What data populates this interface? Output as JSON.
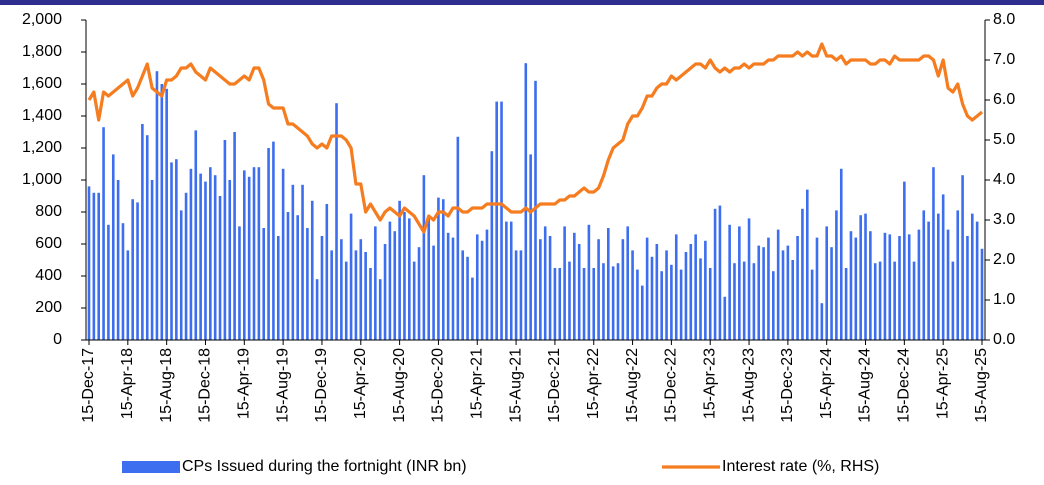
{
  "chart_data": {
    "type": "bar",
    "categories": [
      "15-Dec-17",
      null,
      null,
      null,
      null,
      null,
      null,
      null,
      "15-Apr-18",
      null,
      null,
      null,
      null,
      null,
      null,
      null,
      "15-Aug-18",
      null,
      null,
      null,
      null,
      null,
      null,
      null,
      "15-Dec-18",
      null,
      null,
      null,
      null,
      null,
      null,
      null,
      "15-Apr-19",
      null,
      null,
      null,
      null,
      null,
      null,
      null,
      "15-Aug-19",
      null,
      null,
      null,
      null,
      null,
      null,
      null,
      "15-Dec-19",
      null,
      null,
      null,
      null,
      null,
      null,
      null,
      "15-Apr-20",
      null,
      null,
      null,
      null,
      null,
      null,
      null,
      "15-Aug-20",
      null,
      null,
      null,
      null,
      null,
      null,
      null,
      "15-Dec-20",
      null,
      null,
      null,
      null,
      null,
      null,
      null,
      "15-Apr-21",
      null,
      null,
      null,
      null,
      null,
      null,
      null,
      "15-Aug-21",
      null,
      null,
      null,
      null,
      null,
      null,
      null,
      "15-Dec-21",
      null,
      null,
      null,
      null,
      null,
      null,
      null,
      "15-Apr-22",
      null,
      null,
      null,
      null,
      null,
      null,
      null,
      "15-Aug-22",
      null,
      null,
      null,
      null,
      null,
      null,
      null,
      "15-Dec-22",
      null,
      null,
      null,
      null,
      null,
      null,
      null,
      "15-Apr-23",
      null,
      null,
      null,
      null,
      null,
      null,
      null,
      "15-Aug-23",
      null,
      null,
      null,
      null,
      null,
      null,
      null,
      "15-Dec-23",
      null,
      null,
      null,
      null,
      null,
      null,
      null,
      "15-Apr-24",
      null,
      null,
      null,
      null,
      null,
      null,
      null,
      "15-Aug-24",
      null,
      null,
      null,
      null,
      null,
      null,
      null,
      "15-Dec-24",
      null,
      null,
      null,
      null,
      null,
      null,
      null,
      "15-Apr-25",
      null,
      null,
      null,
      null,
      null,
      null,
      null,
      "15-Aug-25"
    ],
    "series": [
      {
        "name": "CPs Issued during the fortnight (INR bn)",
        "type": "bar",
        "color": "#3d6ef0",
        "values": [
          960,
          920,
          920,
          1330,
          720,
          1160,
          1000,
          730,
          560,
          880,
          860,
          1350,
          1280,
          1000,
          1680,
          1600,
          1570,
          1110,
          1130,
          810,
          920,
          1070,
          1310,
          1040,
          990,
          1080,
          1030,
          900,
          1250,
          1000,
          1300,
          710,
          1060,
          1020,
          1080,
          1080,
          700,
          1200,
          1240,
          650,
          1070,
          800,
          970,
          780,
          970,
          700,
          870,
          380,
          650,
          850,
          560,
          1480,
          630,
          490,
          790,
          560,
          630,
          550,
          450,
          710,
          380,
          600,
          740,
          680,
          870,
          800,
          760,
          490,
          580,
          1030,
          780,
          590,
          890,
          880,
          670,
          640,
          1270,
          560,
          520,
          390,
          660,
          620,
          690,
          1180,
          1490,
          1490,
          740,
          740,
          560,
          560,
          1730,
          1160,
          1620,
          630,
          710,
          650,
          450,
          450,
          710,
          490,
          670,
          600,
          450,
          720,
          450,
          630,
          480,
          700,
          460,
          480,
          630,
          710,
          560,
          440,
          340,
          640,
          520,
          600,
          430,
          560,
          470,
          660,
          440,
          550,
          600,
          660,
          510,
          620,
          450,
          820,
          840,
          270,
          720,
          480,
          710,
          490,
          760,
          480,
          590,
          580,
          640,
          430,
          690,
          560,
          590,
          500,
          650,
          820,
          940,
          440,
          640,
          230,
          710,
          580,
          810,
          1070,
          450,
          680,
          640,
          780,
          790,
          680,
          480,
          490,
          670,
          660,
          490,
          650,
          990,
          660,
          490,
          690,
          810,
          740,
          1080,
          790,
          910,
          690,
          490,
          810,
          1030,
          650,
          790,
          740,
          570
        ]
      },
      {
        "name": "Interest rate (%, RHS)",
        "type": "line",
        "axis": "y2",
        "color": "#f57c1f",
        "values": [
          6.0,
          6.2,
          5.5,
          6.2,
          6.1,
          6.2,
          6.3,
          6.4,
          6.5,
          6.1,
          6.3,
          6.6,
          6.9,
          6.3,
          6.2,
          6.1,
          6.5,
          6.5,
          6.6,
          6.8,
          6.8,
          6.9,
          6.7,
          6.6,
          6.5,
          6.8,
          6.7,
          6.6,
          6.5,
          6.4,
          6.4,
          6.5,
          6.6,
          6.5,
          6.8,
          6.8,
          6.5,
          5.9,
          5.8,
          5.8,
          5.8,
          5.4,
          5.4,
          5.3,
          5.2,
          5.1,
          4.9,
          4.8,
          4.9,
          4.8,
          5.1,
          5.1,
          5.1,
          5.0,
          4.8,
          3.9,
          3.9,
          3.2,
          3.4,
          3.2,
          3.0,
          3.2,
          3.3,
          3.2,
          3.1,
          3.3,
          3.2,
          3.1,
          2.9,
          2.7,
          3.1,
          3.0,
          3.2,
          3.2,
          3.1,
          3.3,
          3.3,
          3.2,
          3.2,
          3.3,
          3.3,
          3.3,
          3.4,
          3.4,
          3.4,
          3.4,
          3.3,
          3.2,
          3.2,
          3.2,
          3.3,
          3.2,
          3.3,
          3.4,
          3.4,
          3.4,
          3.4,
          3.5,
          3.5,
          3.6,
          3.6,
          3.7,
          3.8,
          3.7,
          3.7,
          3.8,
          4.1,
          4.5,
          4.8,
          4.9,
          5.0,
          5.4,
          5.6,
          5.6,
          5.8,
          6.1,
          6.1,
          6.3,
          6.4,
          6.4,
          6.6,
          6.5,
          6.6,
          6.7,
          6.8,
          6.9,
          6.9,
          6.8,
          7.0,
          6.8,
          6.7,
          6.8,
          6.7,
          6.8,
          6.8,
          6.9,
          6.8,
          6.9,
          6.9,
          6.9,
          7.0,
          7.0,
          7.1,
          7.1,
          7.1,
          7.1,
          7.2,
          7.1,
          7.2,
          7.1,
          7.1,
          7.4,
          7.1,
          7.1,
          7.0,
          7.1,
          6.9,
          7.0,
          7.0,
          7.0,
          7.0,
          6.9,
          6.9,
          7.0,
          7.0,
          6.9,
          7.1,
          7.0,
          7.0,
          7.0,
          7.0,
          7.0,
          7.1,
          7.1,
          7.0,
          6.6,
          7.0,
          6.3,
          6.2,
          6.4,
          5.9,
          5.6,
          5.5,
          5.6,
          5.7
        ]
      }
    ],
    "ylim": [
      0,
      2000
    ],
    "yticks": [
      0,
      200,
      400,
      600,
      800,
      {
        "value": 1000,
        "label": "1,000"
      },
      {
        "value": 1200,
        "label": "1,200"
      },
      {
        "value": 1400,
        "label": "1,400"
      },
      {
        "value": 1600,
        "label": "1,600"
      },
      {
        "value": 1800,
        "label": "1,800"
      },
      {
        "value": 2000,
        "label": "2,000"
      }
    ],
    "y2lim": [
      0,
      8
    ],
    "y2ticks": [
      {
        "value": 0,
        "label": "0.0"
      },
      {
        "value": 1,
        "label": "1.0"
      },
      {
        "value": 2,
        "label": "2.0"
      },
      {
        "value": 3,
        "label": "3.0"
      },
      {
        "value": 4,
        "label": "4.0"
      },
      {
        "value": 5,
        "label": "5.0"
      },
      {
        "value": 6,
        "label": "6.0"
      },
      {
        "value": 7,
        "label": "7.0"
      },
      {
        "value": 8,
        "label": "8.0"
      }
    ],
    "grid": false,
    "legend": "bottom"
  }
}
